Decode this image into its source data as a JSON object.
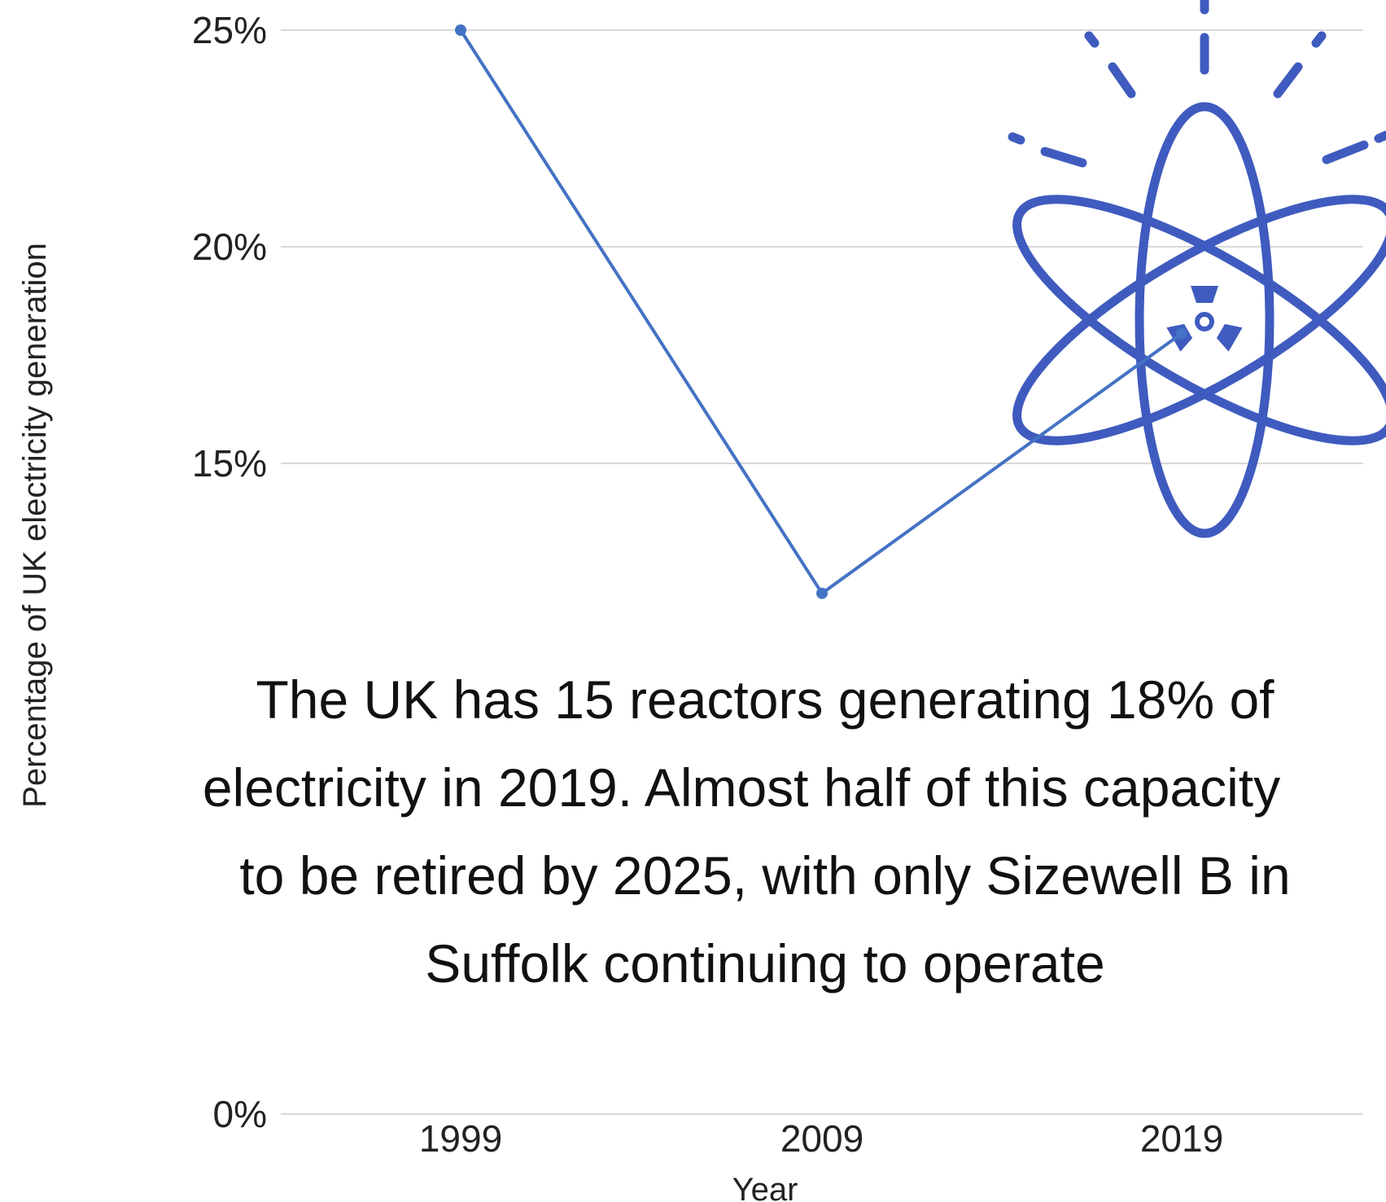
{
  "chart_data": {
    "type": "line",
    "categories": [
      "1999",
      "2009",
      "2019"
    ],
    "series": [
      {
        "values": [
          25,
          12,
          18
        ]
      }
    ],
    "ylabel": "Percentage of UK electricity generation",
    "xlabel": "Year",
    "yticks": [
      "0%",
      "15%",
      "20%",
      "25%"
    ],
    "ytick_values": [
      0,
      15,
      20,
      25
    ],
    "y_axis_break": "between 0% and 15%",
    "grid": true,
    "line_color": "#4472c4",
    "icon": "atom-radiation-icon",
    "icon_color": "#3f5bbf",
    "annotation": {
      "lines": [
        "The UK has 15 reactors generating 18% of",
        "electricity in 2019. Almost half of this capacity",
        "to be retired by 2025, with only Sizewell B in",
        "Suffolk continuing to operate"
      ]
    }
  }
}
